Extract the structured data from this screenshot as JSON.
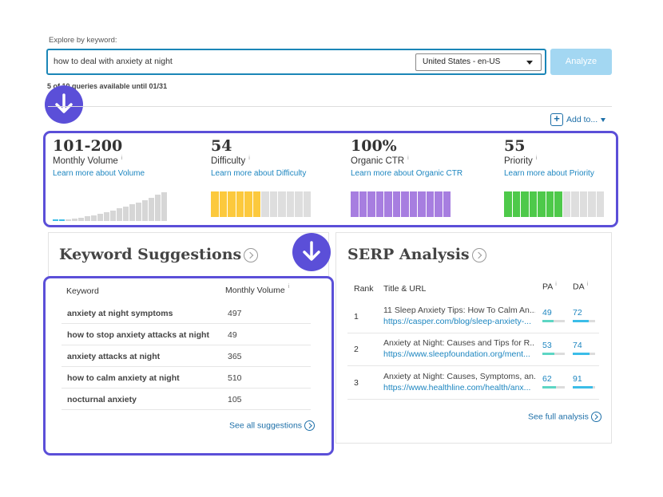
{
  "search": {
    "explore_label": "Explore by keyword:",
    "query": "how to deal with anxiety at night",
    "country": "United States - en-US",
    "analyze_label": "Analyze",
    "queries_note": "5 of 10 queries available until 01/31"
  },
  "toolbar": {
    "add_to_label": "Add to..."
  },
  "metrics": [
    {
      "value": "101-200",
      "label": "Monthly Volume",
      "info": "i",
      "link": "Learn more about Volume",
      "bar_color": "#d6d6d6",
      "accent": "#3bbde8"
    },
    {
      "value": "54",
      "label": "Difficulty",
      "info": "i",
      "link": "Learn more about Difficulty",
      "bar_color": "#fcc93d",
      "level": 0.54
    },
    {
      "value": "100%",
      "label": "Organic CTR",
      "info": "i",
      "link": "Learn more about Organic CTR",
      "bar_color": "#a77ee0",
      "level": 1.0
    },
    {
      "value": "55",
      "label": "Priority",
      "info": "i",
      "link": "Learn more about Priority",
      "bar_color": "#4ec94a",
      "level": 0.55
    }
  ],
  "keyword_suggestions": {
    "title": "Keyword Suggestions",
    "col_keyword": "Keyword",
    "col_volume": "Monthly Volume",
    "info": "i",
    "rows": [
      {
        "keyword": "anxiety at night symptoms",
        "volume": "497"
      },
      {
        "keyword": "how to stop anxiety attacks at night",
        "volume": "49"
      },
      {
        "keyword": "anxiety attacks at night",
        "volume": "365"
      },
      {
        "keyword": "how to calm anxiety at night",
        "volume": "510"
      },
      {
        "keyword": "nocturnal anxiety",
        "volume": "105"
      }
    ],
    "see_all": "See all suggestions"
  },
  "serp": {
    "title": "SERP Analysis",
    "col_rank": "Rank",
    "col_title": "Title & URL",
    "col_pa": "PA",
    "col_da": "DA",
    "info": "i",
    "rows": [
      {
        "rank": "1",
        "title": "11 Sleep Anxiety Tips: How To Calm An...",
        "url": "https://casper.com/blog/sleep-anxiety-...",
        "pa": "49",
        "da": "72",
        "pa_level": 0.49,
        "da_level": 0.72
      },
      {
        "rank": "2",
        "title": "Anxiety at Night: Causes and Tips for R...",
        "url": "https://www.sleepfoundation.org/ment...",
        "pa": "53",
        "da": "74",
        "pa_level": 0.53,
        "da_level": 0.74
      },
      {
        "rank": "3",
        "title": "Anxiety at Night: Causes, Symptoms, an...",
        "url": "https://www.healthline.com/health/anx...",
        "pa": "62",
        "da": "91",
        "pa_level": 0.62,
        "da_level": 0.91
      }
    ],
    "see_full": "See full analysis",
    "pa_color": "#5dd6c4",
    "da_color": "#3bbde8"
  },
  "colors": {
    "accent": "#5b4fd8",
    "link": "#1d86c0"
  }
}
